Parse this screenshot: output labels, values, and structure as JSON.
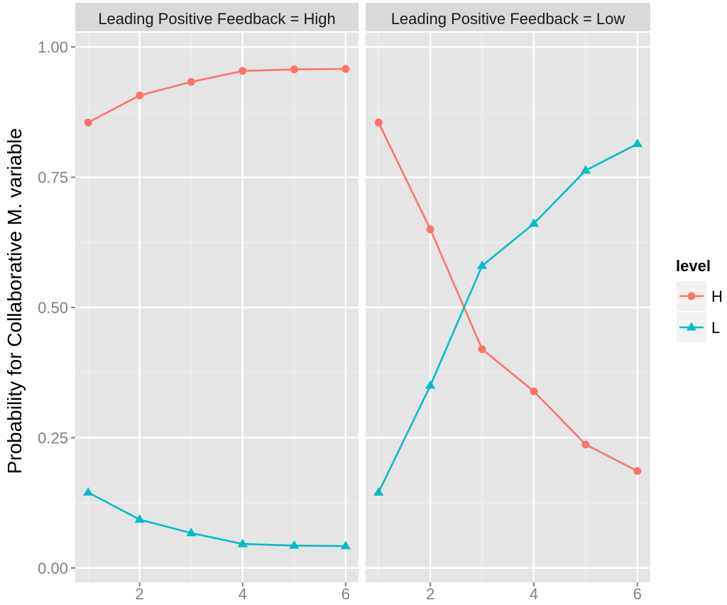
{
  "chart_data": {
    "type": "line",
    "ylabel": "Probability for Collaborative M. variable",
    "xlabel": "",
    "ylim": [
      0,
      1
    ],
    "xlim": [
      1,
      6
    ],
    "x_ticks": [
      "2",
      "4",
      "6"
    ],
    "y_ticks": [
      "0.00",
      "0.25",
      "0.50",
      "0.75",
      "1.00"
    ],
    "grid": true,
    "legend": {
      "title": "level",
      "placement": "right",
      "entries": [
        {
          "label": "H",
          "color": "#F8766D",
          "marker": "circle"
        },
        {
          "label": "L",
          "color": "#00BFC4",
          "marker": "triangle"
        }
      ]
    },
    "x": [
      1,
      2,
      3,
      4,
      5,
      6
    ],
    "panels": [
      {
        "strip": "Leading Positive Feedback = High",
        "series": [
          {
            "name": "H",
            "values": [
              0.855,
              0.907,
              0.933,
              0.954,
              0.957,
              0.958
            ]
          },
          {
            "name": "L",
            "values": [
              0.145,
              0.093,
              0.067,
              0.046,
              0.043,
              0.042
            ]
          }
        ]
      },
      {
        "strip": "Leading Positive Feedback = Low",
        "series": [
          {
            "name": "H",
            "values": [
              0.855,
              0.65,
              0.42,
              0.339,
              0.237,
              0.186
            ]
          },
          {
            "name": "L",
            "values": [
              0.145,
              0.35,
              0.58,
              0.661,
              0.763,
              0.814
            ]
          }
        ]
      }
    ]
  }
}
